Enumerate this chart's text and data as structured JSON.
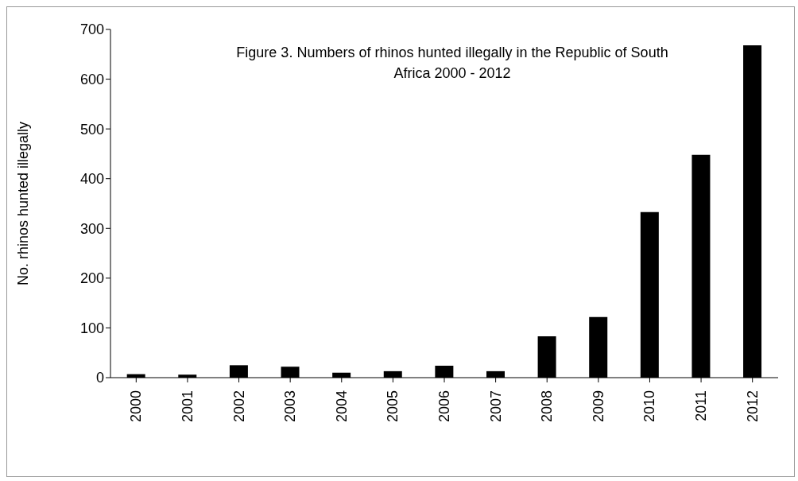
{
  "chart_data": {
    "type": "bar",
    "title": "Figure 3. Numbers of rhinos hunted illegally in the Republic of South Africa 2000 - 2012",
    "ylabel": "No. rhinos hunted illegally",
    "categories": [
      "2000",
      "2001",
      "2002",
      "2003",
      "2004",
      "2005",
      "2006",
      "2007",
      "2008",
      "2009",
      "2010",
      "2011",
      "2012"
    ],
    "values": [
      7,
      6,
      25,
      22,
      10,
      13,
      24,
      13,
      83,
      122,
      333,
      448,
      668
    ],
    "color": "#000000",
    "ylim": [
      0,
      700
    ],
    "yticks": [
      0,
      100,
      200,
      300,
      400,
      500,
      600,
      700
    ],
    "grid": false,
    "legend": false
  }
}
